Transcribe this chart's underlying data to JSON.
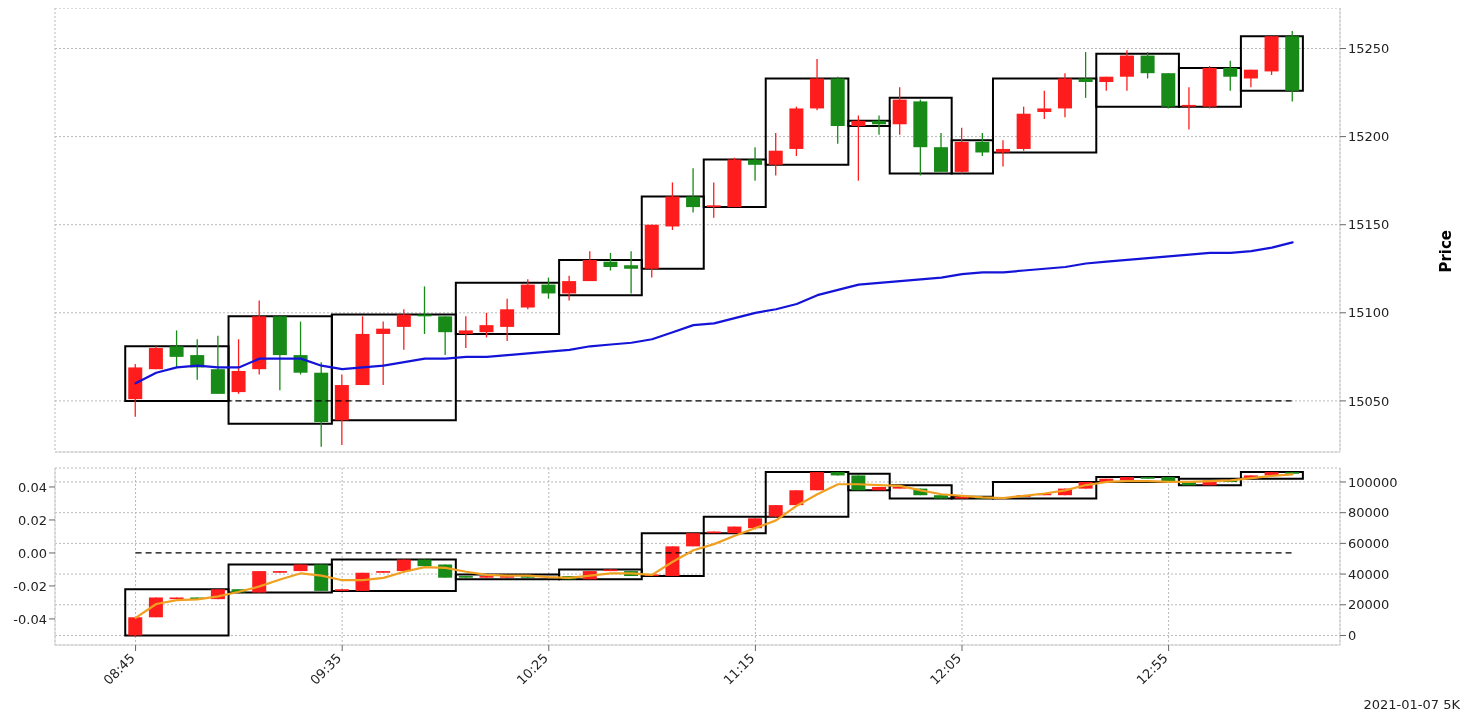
{
  "chart_data": [
    {
      "type": "candlestick",
      "x": [
        8.75,
        8.8333,
        8.9167,
        9,
        9.0833,
        9.1667,
        9.25,
        9.3333,
        9.4167,
        9.5,
        9.5833,
        9.6667,
        9.75,
        9.8333,
        9.9167,
        10,
        10.0833,
        10.1667,
        10.25,
        10.3333,
        10.4167,
        10.5,
        10.5833,
        10.6667,
        10.75,
        10.8333,
        10.9167,
        11,
        11.0833,
        11.1667,
        11.25,
        11.3333,
        11.4167,
        11.5,
        11.5833,
        11.6667,
        11.75,
        11.8333,
        11.9167,
        12,
        12.0833,
        12.1667,
        12.25,
        12.3333,
        12.4167,
        12.5,
        12.5833,
        12.6667,
        12.75,
        12.8333,
        12.9167,
        13,
        13.0833,
        13.1667,
        13.25,
        13.3333,
        13.4167
      ],
      "xlim": [
        8.425,
        13.608
      ],
      "xticks": [
        {
          "value": 8.75,
          "label": null
        },
        {
          "value": 9.5833,
          "label": null
        },
        {
          "value": 10.4167,
          "label": null
        },
        {
          "value": 11.25,
          "label": null
        },
        {
          "value": 12.0833,
          "label": null
        },
        {
          "value": 12.9167,
          "label": null
        }
      ],
      "y2lim": [
        15021,
        15273
      ],
      "y2ticks": [
        15050,
        15100,
        15150,
        15200,
        15250
      ],
      "y2label": "Price",
      "tick_labels": "y",
      "grid": true,
      "ref_lines": [
        {
          "axis": "y2",
          "value": 15050,
          "color": "#000000",
          "line_style": "dashed"
        }
      ],
      "series": [
        {
          "type": "candlestick",
          "axis": "y2",
          "ohlc": [
            [
              15051,
              15071,
              15041,
              15069
            ],
            [
              15068,
              15081,
              15068,
              15080
            ],
            [
              15081,
              15090,
              15069,
              15075
            ],
            [
              15076,
              15085,
              15062,
              15069
            ],
            [
              15068,
              15087,
              15054,
              15054
            ],
            [
              15055,
              15085,
              15054,
              15067
            ],
            [
              15068,
              15107,
              15065,
              15098
            ],
            [
              15098,
              15098,
              15056,
              15076
            ],
            [
              15076,
              15095,
              15065,
              15066
            ],
            [
              15066,
              15072,
              15024,
              15038
            ],
            [
              15039,
              15065,
              15025,
              15059
            ],
            [
              15059,
              15098,
              15059,
              15088
            ],
            [
              15088,
              15095,
              15059,
              15091
            ],
            [
              15092,
              15102,
              15079,
              15099
            ],
            [
              15099,
              15115,
              15088,
              15098
            ],
            [
              15098,
              15098,
              15076,
              15089
            ],
            [
              15088,
              15098,
              15080,
              15090
            ],
            [
              15089,
              15100,
              15086,
              15093
            ],
            [
              15092,
              15108,
              15084,
              15102
            ],
            [
              15103,
              15119,
              15102,
              15116
            ],
            [
              15116,
              15120,
              15108,
              15111
            ],
            [
              15111,
              15121,
              15107,
              15118
            ],
            [
              15118,
              15135,
              15118,
              15130
            ],
            [
              15129,
              15134,
              15124,
              15126
            ],
            [
              15127,
              15135,
              15111,
              15125
            ],
            [
              15125,
              15150,
              15120,
              15150
            ],
            [
              15149,
              15174,
              15147,
              15166
            ],
            [
              15166,
              15182,
              15157,
              15160
            ],
            [
              15160,
              15174,
              15154,
              15161
            ],
            [
              15160,
              15188,
              15160,
              15187
            ],
            [
              15187,
              15194,
              15175,
              15184
            ],
            [
              15184,
              15202,
              15178,
              15192
            ],
            [
              15193,
              15217,
              15189,
              15216
            ],
            [
              15216,
              15244,
              15215,
              15233
            ],
            [
              15233,
              15234,
              15196,
              15206
            ],
            [
              15206,
              15212,
              15175,
              15209
            ],
            [
              15209,
              15212,
              15201,
              15207
            ],
            [
              15207,
              15228,
              15201,
              15221
            ],
            [
              15220,
              15221,
              15178,
              15194
            ],
            [
              15194,
              15202,
              15180,
              15180
            ],
            [
              15180,
              15205,
              15179,
              15197
            ],
            [
              15197,
              15202,
              15189,
              15191
            ],
            [
              15191,
              15198,
              15183,
              15193
            ],
            [
              15193,
              15217,
              15192,
              15213
            ],
            [
              15214,
              15226,
              15210,
              15216
            ],
            [
              15216,
              15236,
              15211,
              15233
            ],
            [
              15233,
              15248,
              15222,
              15231
            ],
            [
              15231,
              15234,
              15226,
              15234
            ],
            [
              15234,
              15249,
              15226,
              15246
            ],
            [
              15246,
              15248,
              15233,
              15236
            ],
            [
              15236,
              15236,
              15216,
              15217
            ],
            [
              15217,
              15228,
              15204,
              15218
            ],
            [
              15217,
              15240,
              15216,
              15239
            ],
            [
              15239,
              15243,
              15226,
              15234
            ],
            [
              15233,
              15238,
              15228,
              15238
            ],
            [
              15237,
              15257,
              15235,
              15257
            ],
            [
              15257,
              15260,
              15220,
              15226
            ]
          ],
          "colors": [
            "#ff1c1c",
            "#ff1c1c",
            "#178a17",
            "#178a17",
            "#178a17",
            "#ff1c1c",
            "#ff1c1c",
            "#178a17",
            "#178a17",
            "#178a17",
            "#ff1c1c",
            "#ff1c1c",
            "#ff1c1c",
            "#ff1c1c",
            "#178a17",
            "#178a17",
            "#ff1c1c",
            "#ff1c1c",
            "#ff1c1c",
            "#ff1c1c",
            "#178a17",
            "#ff1c1c",
            "#ff1c1c",
            "#178a17",
            "#178a17",
            "#ff1c1c",
            "#ff1c1c",
            "#178a17",
            "#ff1c1c",
            "#ff1c1c",
            "#178a17",
            "#ff1c1c",
            "#ff1c1c",
            "#ff1c1c",
            "#178a17",
            "#ff1c1c",
            "#178a17",
            "#ff1c1c",
            "#178a17",
            "#178a17",
            "#ff1c1c",
            "#178a17",
            "#ff1c1c",
            "#ff1c1c",
            "#ff1c1c",
            "#ff1c1c",
            "#178a17",
            "#ff1c1c",
            "#ff1c1c",
            "#178a17",
            "#178a17",
            "#ff1c1c",
            "#ff1c1c",
            "#178a17",
            "#ff1c1c",
            "#ff1c1c",
            "#178a17"
          ]
        },
        {
          "type": "line",
          "axis": "y2",
          "color": "#1414d8",
          "values": [
            15060,
            15066,
            15069,
            15070,
            15069,
            15069,
            15074,
            15074,
            15074,
            15070,
            15068,
            15069,
            15070,
            15072,
            15074,
            15074,
            15075,
            15075,
            15076,
            15077,
            15078,
            15079,
            15081,
            15082,
            15083,
            15085,
            15089,
            15093,
            15094,
            15097,
            15100,
            15102,
            15105,
            15110,
            15113,
            15116,
            15117,
            15118,
            15119,
            15120,
            15122,
            15123,
            15123,
            15124,
            15125,
            15126,
            15128,
            15129,
            15130,
            15131,
            15132,
            15133,
            15134,
            15134,
            15135,
            15137,
            15140
          ]
        },
        {
          "type": "histogram",
          "axis": "y2",
          "color": "#000000",
          "bins": [
            8.7083,
            9.125,
            9.5417,
            10.0417,
            10.4583,
            10.7917,
            11.0417,
            11.2917,
            11.625,
            11.7917,
            12.0417,
            12.2083,
            12.625,
            12.9583,
            13.2083,
            13.4583
          ],
          "base": [
            15050,
            15037,
            15039,
            15088,
            15110,
            15125,
            15160,
            15184,
            15206,
            15179,
            15179,
            15191,
            15217,
            15217,
            15226
          ],
          "values": [
            31,
            61,
            60,
            29,
            20,
            41,
            27,
            49,
            3,
            43,
            19,
            42,
            30,
            22,
            31
          ]
        }
      ]
    },
    {
      "type": "candlestick",
      "x": [
        8.75,
        8.8333,
        8.9167,
        9,
        9.0833,
        9.1667,
        9.25,
        9.3333,
        9.4167,
        9.5,
        9.5833,
        9.6667,
        9.75,
        9.8333,
        9.9167,
        10,
        10.0833,
        10.1667,
        10.25,
        10.3333,
        10.4167,
        10.5,
        10.5833,
        10.6667,
        10.75,
        10.8333,
        10.9167,
        11,
        11.0833,
        11.1667,
        11.25,
        11.3333,
        11.4167,
        11.5,
        11.5833,
        11.6667,
        11.75,
        11.8333,
        11.9167,
        12,
        12.0833,
        12.1667,
        12.25,
        12.3333,
        12.4167,
        12.5,
        12.5833,
        12.6667,
        12.75,
        12.8333,
        12.9167,
        13,
        13.0833,
        13.1667,
        13.25,
        13.3333,
        13.4167
      ],
      "xlim": [
        8.425,
        13.608
      ],
      "xticks": [
        {
          "value": 8.75,
          "label": "08:45"
        },
        {
          "value": 9.5833,
          "label": "09:35"
        },
        {
          "value": 10.4167,
          "label": "10:25"
        },
        {
          "value": 11.25,
          "label": "11:15"
        },
        {
          "value": 12.0833,
          "label": "12:05"
        },
        {
          "value": 12.9167,
          "label": "12:55"
        }
      ],
      "ylim": [
        -0.0558,
        0.0515
      ],
      "yticks": [
        -0.04,
        -0.02,
        {
          "value": 0,
          "label": "0.00"
        },
        0.02,
        0.04
      ],
      "y2lim": [
        -6200,
        109100
      ],
      "y2ticks": [
        0,
        20000,
        40000,
        60000,
        80000,
        100000
      ],
      "grid": true,
      "ref_lines": [
        {
          "axis": "y",
          "value": 0,
          "color": "#000000",
          "line_style": "dashed"
        }
      ],
      "annotations": [
        "2021-01-07 5K"
      ],
      "series": [
        {
          "type": "candlestick",
          "axis": "y",
          "ohlc": [
            [
              -0.05,
              -0.039,
              -0.051,
              -0.039
            ],
            [
              -0.039,
              -0.027,
              -0.039,
              -0.027
            ],
            [
              -0.028,
              -0.027,
              -0.028,
              -0.027
            ],
            [
              -0.027,
              -0.027,
              -0.028,
              -0.028
            ],
            [
              -0.028,
              -0.022,
              -0.028,
              -0.022
            ],
            [
              -0.022,
              -0.022,
              -0.024,
              -0.024
            ],
            [
              -0.024,
              -0.011,
              -0.024,
              -0.011
            ],
            [
              -0.012,
              -0.011,
              -0.012,
              -0.011
            ],
            [
              -0.011,
              -0.007,
              -0.011,
              -0.007
            ],
            [
              -0.007,
              -0.007,
              -0.023,
              -0.023
            ],
            [
              -0.023,
              -0.022,
              -0.023,
              -0.022
            ],
            [
              -0.023,
              -0.012,
              -0.023,
              -0.012
            ],
            [
              -0.012,
              -0.011,
              -0.012,
              -0.011
            ],
            [
              -0.011,
              -0.004,
              -0.011,
              -0.004
            ],
            [
              -0.004,
              -0.004,
              -0.008,
              -0.008
            ],
            [
              -0.007,
              -0.007,
              -0.015,
              -0.015
            ],
            [
              -0.014,
              -0.014,
              -0.015,
              -0.015
            ],
            [
              -0.015,
              -0.014,
              -0.015,
              -0.014
            ],
            [
              -0.015,
              -0.014,
              -0.015,
              -0.014
            ],
            [
              -0.014,
              -0.014,
              -0.015,
              -0.015
            ],
            null,
            [
              -0.014,
              -0.014,
              -0.016,
              -0.016
            ],
            [
              -0.016,
              -0.011,
              -0.016,
              -0.011
            ],
            [
              -0.011,
              -0.01,
              -0.011,
              -0.01
            ],
            [
              -0.011,
              -0.011,
              -0.014,
              -0.014
            ],
            [
              -0.014,
              -0.013,
              -0.014,
              -0.013
            ],
            [
              -0.014,
              0.004,
              -0.014,
              0.004
            ],
            [
              0.004,
              0.012,
              0.004,
              0.012
            ],
            [
              0.012,
              0.013,
              0.012,
              0.013
            ],
            [
              0.012,
              0.016,
              0.012,
              0.016
            ],
            [
              0.015,
              0.021,
              0.015,
              0.021
            ],
            [
              0.022,
              0.029,
              0.022,
              0.029
            ],
            [
              0.029,
              0.038,
              0.029,
              0.038
            ],
            [
              0.038,
              0.049,
              0.038,
              0.049
            ],
            [
              0.049,
              0.049,
              0.047,
              0.047
            ],
            [
              0.047,
              0.047,
              0.038,
              0.038
            ],
            [
              0.038,
              0.04,
              0.038,
              0.04
            ],
            [
              0.039,
              0.04,
              0.039,
              0.04
            ],
            [
              0.039,
              0.039,
              0.035,
              0.035
            ],
            [
              0.035,
              0.035,
              0.033,
              0.033
            ],
            [
              0.033,
              0.034,
              0.033,
              0.034
            ],
            [
              0.034,
              0.034,
              0.033,
              0.033
            ],
            null,
            [
              0.034,
              0.035,
              0.034,
              0.035
            ],
            [
              0.035,
              0.036,
              0.035,
              0.036
            ],
            [
              0.035,
              0.039,
              0.035,
              0.039
            ],
            [
              0.039,
              0.043,
              0.039,
              0.043
            ],
            [
              0.043,
              0.045,
              0.043,
              0.045
            ],
            [
              0.044,
              0.046,
              0.044,
              0.046
            ],
            [
              0.046,
              0.046,
              0.045,
              0.045
            ],
            [
              0.046,
              0.046,
              0.043,
              0.043
            ],
            [
              0.043,
              0.043,
              0.041,
              0.041
            ],
            [
              0.041,
              0.044,
              0.041,
              0.044
            ],
            [
              0.044,
              0.044,
              0.043,
              0.043
            ],
            [
              0.045,
              0.047,
              0.045,
              0.047
            ],
            [
              0.047,
              0.049,
              0.047,
              0.049
            ],
            [
              0.049,
              0.049,
              0.048,
              0.048
            ]
          ],
          "colors": [
            "#ff1c1c",
            "#ff1c1c",
            "#ff1c1c",
            "#178a17",
            "#ff1c1c",
            "#178a17",
            "#ff1c1c",
            "#ff1c1c",
            "#ff1c1c",
            "#178a17",
            "#ff1c1c",
            "#ff1c1c",
            "#ff1c1c",
            "#ff1c1c",
            "#178a17",
            "#178a17",
            "#178a17",
            "#ff1c1c",
            "#ff1c1c",
            "#178a17",
            "#ff1c1c",
            "#178a17",
            "#ff1c1c",
            "#ff1c1c",
            "#178a17",
            "#ff1c1c",
            "#ff1c1c",
            "#ff1c1c",
            "#ff1c1c",
            "#ff1c1c",
            "#ff1c1c",
            "#ff1c1c",
            "#ff1c1c",
            "#ff1c1c",
            "#178a17",
            "#178a17",
            "#ff1c1c",
            "#ff1c1c",
            "#178a17",
            "#178a17",
            "#ff1c1c",
            "#178a17",
            "#ff1c1c",
            "#ff1c1c",
            "#ff1c1c",
            "#ff1c1c",
            "#ff1c1c",
            "#ff1c1c",
            "#ff1c1c",
            "#178a17",
            "#178a17",
            "#178a17",
            "#ff1c1c",
            "#178a17",
            "#ff1c1c",
            "#ff1c1c",
            "#178a17"
          ]
        },
        {
          "type": "line",
          "axis": "y2",
          "color": "#f0a020",
          "values": [
            11500,
            20500,
            23000,
            23500,
            25500,
            28500,
            32000,
            36500,
            40500,
            39000,
            36000,
            36000,
            37500,
            41500,
            44500,
            44000,
            41500,
            39500,
            39000,
            39000,
            38000,
            37500,
            39000,
            40500,
            40500,
            39500,
            48000,
            55500,
            59500,
            65000,
            70000,
            75000,
            84500,
            92000,
            98500,
            98500,
            98000,
            97500,
            94500,
            92000,
            91000,
            90000,
            89500,
            91000,
            92500,
            94500,
            98000,
            100000,
            100500,
            100500,
            100000,
            100000,
            100500,
            101000,
            102500,
            104000,
            105000
          ]
        },
        {
          "type": "histogram",
          "axis": "y",
          "color": "#000000",
          "bins": [
            8.7083,
            9.125,
            9.5417,
            10.0417,
            10.4583,
            10.7917,
            11.0417,
            11.2917,
            11.625,
            11.7917,
            12.0417,
            12.2083,
            12.625,
            12.9583,
            13.2083,
            13.4583
          ],
          "base": [
            -0.05,
            -0.024,
            -0.023,
            -0.016,
            -0.016,
            -0.014,
            0.012,
            0.022,
            0.038,
            0.033,
            0.033,
            0.033,
            0.043,
            0.041,
            0.045
          ],
          "values": [
            0.028,
            0.017,
            0.019,
            0.003,
            0.006,
            0.026,
            0.01,
            0.027,
            0.01,
            0.008,
            0.001,
            0.01,
            0.003,
            0.004,
            0.004
          ]
        }
      ]
    }
  ]
}
